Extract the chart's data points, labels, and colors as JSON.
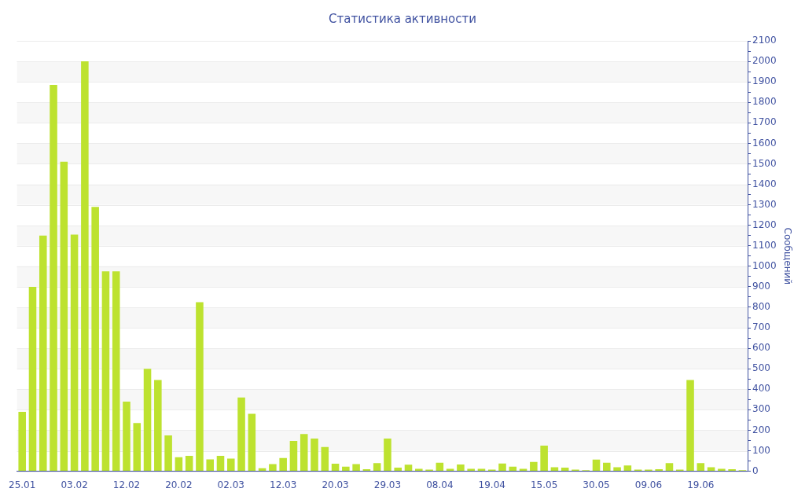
{
  "chart_data": {
    "type": "bar",
    "title": "Статистика активности",
    "ylabel": "Сообщений",
    "categories": [
      "25.01",
      null,
      null,
      null,
      null,
      "03.02",
      null,
      null,
      null,
      null,
      "12.02",
      null,
      null,
      null,
      null,
      "20.02",
      null,
      null,
      null,
      null,
      "02.03",
      null,
      null,
      null,
      null,
      "12.03",
      null,
      null,
      null,
      null,
      "20.03",
      null,
      null,
      null,
      null,
      "29.03",
      null,
      null,
      null,
      null,
      "08.04",
      null,
      null,
      null,
      null,
      "19.04",
      null,
      null,
      null,
      null,
      "15.05",
      null,
      null,
      null,
      null,
      "30.05",
      null,
      null,
      null,
      null,
      "09.06",
      null,
      null,
      null,
      null,
      "19.06",
      null,
      null,
      null,
      null
    ],
    "values": [
      290,
      900,
      1150,
      1885,
      1510,
      1155,
      2000,
      1290,
      975,
      975,
      340,
      235,
      500,
      445,
      175,
      68,
      75,
      825,
      58,
      75,
      62,
      360,
      280,
      15,
      35,
      65,
      148,
      182,
      160,
      118,
      37,
      22,
      35,
      10,
      40,
      160,
      18,
      32,
      12,
      8,
      42,
      12,
      33,
      12,
      12,
      8,
      38,
      22,
      12,
      45,
      125,
      20,
      18,
      8,
      5,
      57,
      42,
      20,
      28,
      8,
      8,
      10,
      40,
      8,
      445,
      40,
      20,
      12,
      10,
      5
    ],
    "color": "#bde22f",
    "ylim": [
      0,
      2100
    ],
    "yticks": [
      0,
      {
        "value": 50,
        "label": null
      },
      100,
      {
        "value": 150,
        "label": null
      },
      200,
      {
        "value": 250,
        "label": null
      },
      300,
      {
        "value": 350,
        "label": null
      },
      400,
      {
        "value": 450,
        "label": null
      },
      500,
      {
        "value": 550,
        "label": null
      },
      600,
      {
        "value": 650,
        "label": null
      },
      700,
      {
        "value": 750,
        "label": null
      },
      800,
      {
        "value": 850,
        "label": null
      },
      900,
      {
        "value": 950,
        "label": null
      },
      1000,
      {
        "value": 1050,
        "label": null
      },
      1100,
      {
        "value": 1150,
        "label": null
      },
      1200,
      {
        "value": 1250,
        "label": null
      },
      1300,
      {
        "value": 1350,
        "label": null
      },
      1400,
      {
        "value": 1450,
        "label": null
      },
      1500,
      {
        "value": 1550,
        "label": null
      },
      1600,
      {
        "value": 1650,
        "label": null
      },
      1700,
      {
        "value": 1750,
        "label": null
      },
      1800,
      {
        "value": 1850,
        "label": null
      },
      1900,
      {
        "value": 1950,
        "label": null
      },
      2000,
      {
        "value": 2050,
        "label": null
      },
      2100
    ],
    "grid": "y",
    "legend": false
  }
}
